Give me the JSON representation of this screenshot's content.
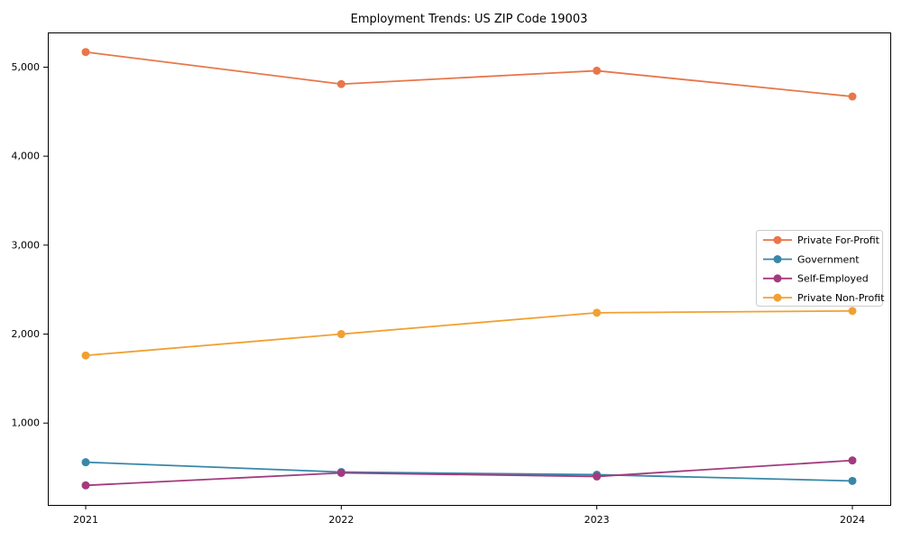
{
  "figure": {
    "background": "#ffffff"
  },
  "chart_data": {
    "type": "line",
    "title": "Employment Trends: US ZIP Code 19003",
    "xlabel": "",
    "ylabel": "",
    "x": [
      "2021",
      "2022",
      "2023",
      "2024"
    ],
    "series": [
      {
        "name": "Private For-Profit",
        "color": "#e8764b",
        "values": [
          5170,
          4810,
          4960,
          4670
        ]
      },
      {
        "name": "Government",
        "color": "#3787a8",
        "values": [
          560,
          450,
          420,
          350
        ]
      },
      {
        "name": "Self-Employed",
        "color": "#a23b7e",
        "values": [
          300,
          440,
          400,
          580
        ]
      },
      {
        "name": "Private Non-Profit",
        "color": "#f0a132",
        "values": [
          1760,
          2000,
          2240,
          2260
        ]
      }
    ],
    "y_ticks": [
      1000,
      2000,
      3000,
      4000,
      5000
    ],
    "y_tick_labels": [
      "1,000",
      "2,000",
      "3,000",
      "4,000",
      "5,000"
    ],
    "ylim": [
      80,
      5390
    ],
    "grid": false,
    "legend_position": "center right",
    "marker": "circle"
  }
}
